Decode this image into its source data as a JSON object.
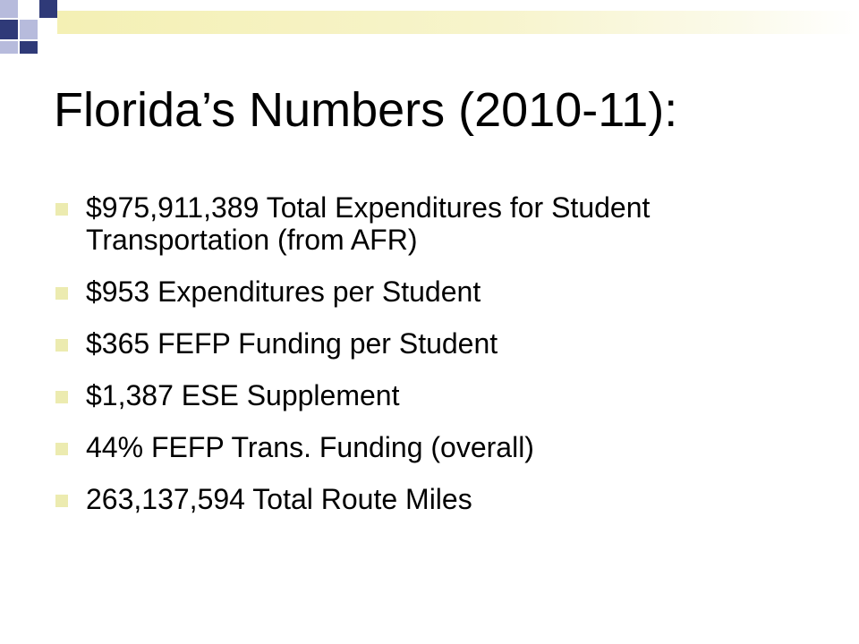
{
  "slide": {
    "title": "Florida’s Numbers (2010-11):",
    "bullets": [
      {
        "text": "$975,911,389 Total Expenditures for Student Transportation (from AFR)"
      },
      {
        "text": "$953 Expenditures per Student"
      },
      {
        "text": "$365 FEFP Funding per Student"
      },
      {
        "text": "$1,387 ESE Supplement"
      },
      {
        "text": "44% FEFP Trans. Funding (overall)"
      },
      {
        "text": "263,137,594 Total Route Miles"
      }
    ]
  },
  "theme": {
    "accent_navy": "#2f3a78",
    "accent_lavender": "#b7bbdc",
    "accent_yellow": "#f4f0b4",
    "bullet_color": "#ecebb0",
    "text_color": "#000000"
  },
  "icons": {
    "bullet": "square-bullet-icon",
    "decoration": "checker-corner-decoration"
  }
}
